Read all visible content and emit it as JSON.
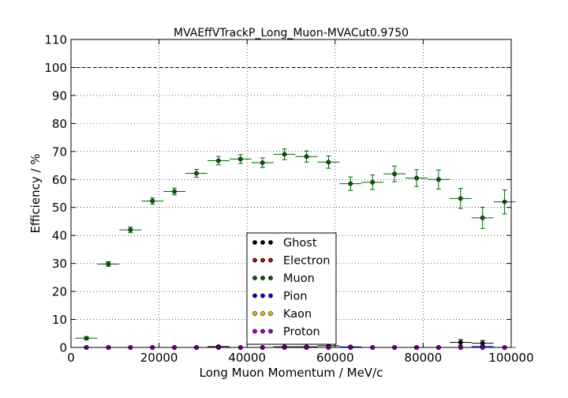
{
  "chart_data": {
    "type": "scatter",
    "title": "MVAEffVTrackP_Long_Muon-MVACut0.9750",
    "xlabel": "Long Muon Momentum / MeV/c",
    "ylabel": "Efficiency / %",
    "xlim": [
      0,
      100000
    ],
    "ylim": [
      0,
      110
    ],
    "xticks": [
      0,
      20000,
      40000,
      60000,
      80000,
      100000
    ],
    "xtick_labels": [
      "0",
      "20000",
      "40000",
      "60000",
      "80000",
      "100000"
    ],
    "yticks": [
      0,
      10,
      20,
      30,
      40,
      50,
      60,
      70,
      80,
      90,
      100,
      110
    ],
    "ytick_labels": [
      "0",
      "10",
      "20",
      "30",
      "40",
      "50",
      "60",
      "70",
      "80",
      "90",
      "100",
      "110"
    ],
    "reference_line": 100,
    "grid": true,
    "legend_position": "lower-center",
    "bin_half_width": 2500,
    "x": [
      3500,
      8500,
      13500,
      18500,
      23500,
      28500,
      33500,
      38500,
      43500,
      48500,
      53500,
      58500,
      63500,
      68500,
      73500,
      78500,
      83500,
      88500,
      93500,
      98500
    ],
    "series": [
      {
        "name": "Ghost",
        "color": "#000000",
        "values": [
          0,
          0,
          0,
          0,
          0,
          0,
          0.3,
          0,
          0,
          0.2,
          0.2,
          0.6,
          0,
          0,
          0,
          0,
          0,
          1.8,
          1.5,
          0
        ],
        "errors": [
          0,
          0,
          0,
          0,
          0,
          0,
          0.3,
          0,
          0,
          0.3,
          0.3,
          0.5,
          0,
          0,
          0,
          0,
          0,
          1.0,
          1.0,
          0
        ]
      },
      {
        "name": "Electron",
        "color": "#cc0000",
        "values": [
          0,
          0,
          0,
          0,
          0,
          0,
          0,
          0,
          0,
          0,
          0,
          0,
          0,
          0,
          0,
          0,
          0,
          0,
          0,
          0
        ],
        "errors": [
          0,
          0,
          0,
          0,
          0,
          0,
          0,
          0,
          0,
          0,
          0,
          0,
          0,
          0,
          0,
          0,
          0,
          0,
          0,
          0
        ]
      },
      {
        "name": "Muon",
        "color": "#006400",
        "values": [
          3.3,
          29.8,
          42.0,
          52.3,
          55.7,
          62.2,
          66.7,
          67.3,
          66.0,
          69.0,
          68.2,
          66.2,
          58.5,
          59.0,
          62.0,
          60.5,
          60.0,
          53.2,
          46.3,
          52.0
        ],
        "errors": [
          0.5,
          0.8,
          1.0,
          1.1,
          1.2,
          1.4,
          1.5,
          1.6,
          1.7,
          1.9,
          2.0,
          2.2,
          2.4,
          2.6,
          2.8,
          3.0,
          3.4,
          3.6,
          3.8,
          4.3
        ]
      },
      {
        "name": "Pion",
        "color": "#0000cc",
        "values": [
          0,
          0,
          0,
          0,
          0,
          0,
          0,
          0,
          0,
          0.1,
          0,
          0,
          0.2,
          0,
          0,
          0,
          0,
          0,
          0.3,
          0
        ],
        "errors": [
          0,
          0,
          0,
          0,
          0,
          0,
          0,
          0,
          0,
          0.1,
          0,
          0,
          0.2,
          0,
          0,
          0,
          0,
          0,
          0.3,
          0
        ]
      },
      {
        "name": "Kaon",
        "color": "#e6b800",
        "values": [
          0,
          0,
          0,
          0,
          0,
          0,
          0,
          0,
          0,
          0,
          0,
          0,
          0,
          0,
          0,
          0,
          0,
          0,
          0,
          0
        ],
        "errors": [
          0,
          0,
          0,
          0,
          0,
          0,
          0,
          0,
          0,
          0,
          0,
          0,
          0,
          0,
          0,
          0,
          0,
          0,
          0,
          0
        ]
      },
      {
        "name": "Proton",
        "color": "#9900cc",
        "values": [
          0,
          0,
          0,
          0,
          0,
          0,
          0,
          0,
          0,
          0,
          0,
          0,
          0,
          0,
          0,
          0,
          0,
          0,
          0,
          0
        ],
        "errors": [
          0,
          0,
          0,
          0,
          0,
          0,
          0,
          0,
          0,
          0,
          0,
          0,
          0,
          0,
          0,
          0,
          0,
          0,
          0,
          0
        ]
      }
    ]
  }
}
